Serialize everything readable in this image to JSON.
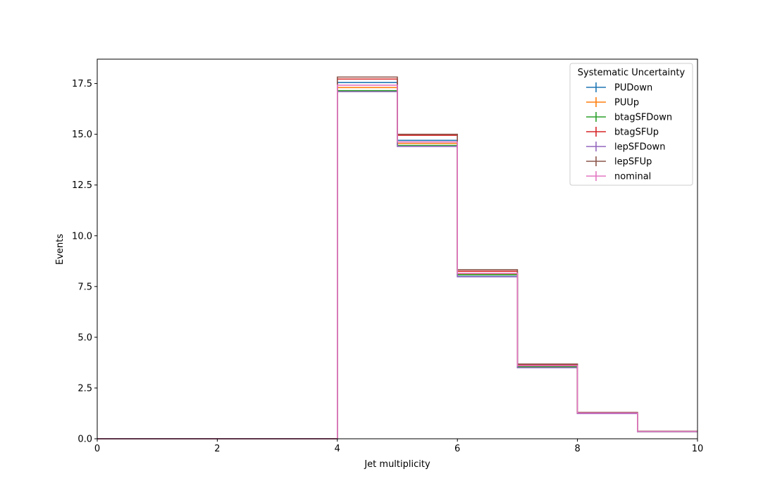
{
  "chart_data": {
    "type": "line",
    "title": "",
    "xlabel": "Jet multiplicity",
    "ylabel": "Events",
    "xlim": [
      0,
      10
    ],
    "ylim": [
      0,
      18.7
    ],
    "grid": false,
    "x_ticks": [
      "0",
      "2",
      "4",
      "6",
      "8",
      "10"
    ],
    "y_ticks": [
      "0.0",
      "2.5",
      "5.0",
      "7.5",
      "10.0",
      "12.5",
      "15.0",
      "17.5"
    ],
    "bin_edges": [
      0,
      1,
      2,
      3,
      4,
      5,
      6,
      7,
      8,
      9,
      10
    ],
    "legend": {
      "title": "Systematic Uncertainty",
      "placement": "top-right"
    },
    "series": [
      {
        "name": "PUDown",
        "color": "#1f77b4",
        "values": [
          0,
          0,
          0,
          0,
          17.55,
          14.7,
          8.0,
          3.52,
          1.25,
          0.36
        ]
      },
      {
        "name": "PUUp",
        "color": "#ff7f0e",
        "values": [
          0,
          0,
          0,
          0,
          17.3,
          14.55,
          8.12,
          3.58,
          1.27,
          0.36
        ]
      },
      {
        "name": "btagSFDown",
        "color": "#2ca02c",
        "values": [
          0,
          0,
          0,
          0,
          17.15,
          14.45,
          8.08,
          3.55,
          1.26,
          0.35
        ]
      },
      {
        "name": "btagSFUp",
        "color": "#d62728",
        "values": [
          0,
          0,
          0,
          0,
          17.72,
          14.95,
          8.25,
          3.65,
          1.29,
          0.37
        ]
      },
      {
        "name": "lepSFDown",
        "color": "#9467bd",
        "values": [
          0,
          0,
          0,
          0,
          17.1,
          14.4,
          7.98,
          3.5,
          1.24,
          0.35
        ]
      },
      {
        "name": "lepSFUp",
        "color": "#8c564b",
        "values": [
          0,
          0,
          0,
          0,
          17.82,
          15.0,
          8.33,
          3.68,
          1.3,
          0.37
        ]
      },
      {
        "name": "nominal",
        "color": "#e377c2",
        "values": [
          0,
          0,
          0,
          0,
          17.42,
          14.62,
          8.15,
          3.6,
          1.27,
          0.36
        ]
      }
    ]
  }
}
